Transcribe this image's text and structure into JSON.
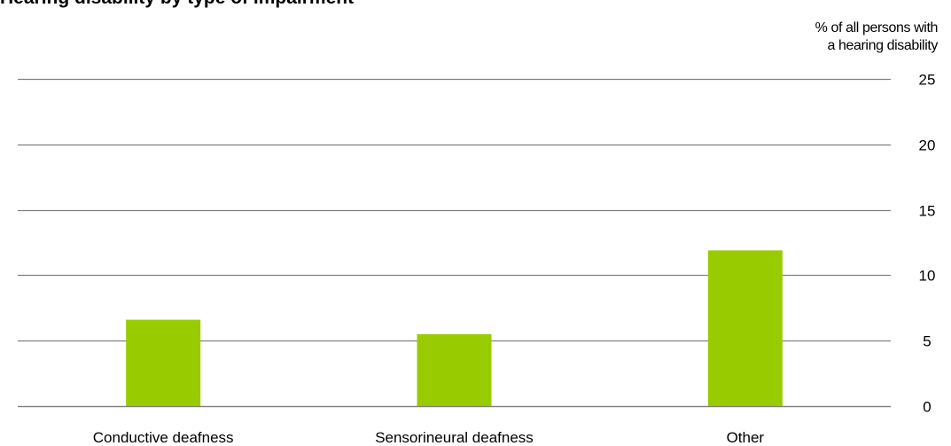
{
  "chart_data": {
    "type": "bar",
    "title": "Hearing disability by type of impairment",
    "unit_label_line1": "% of all persons with",
    "unit_label_line2": "a hearing disability",
    "categories": [
      "Conductive deafness",
      "Sensorineural deafness",
      "Other"
    ],
    "values": [
      6.6,
      5.5,
      11.9
    ],
    "ylim": [
      0,
      25
    ],
    "yticks": [
      0,
      5,
      10,
      15,
      20,
      25
    ],
    "ytick_labels": [
      "0",
      "5",
      "10",
      "15",
      "20",
      "25"
    ],
    "y_axis_side": "right",
    "grid": true,
    "bar_color": "#99cc00",
    "grid_color": "#808080"
  }
}
